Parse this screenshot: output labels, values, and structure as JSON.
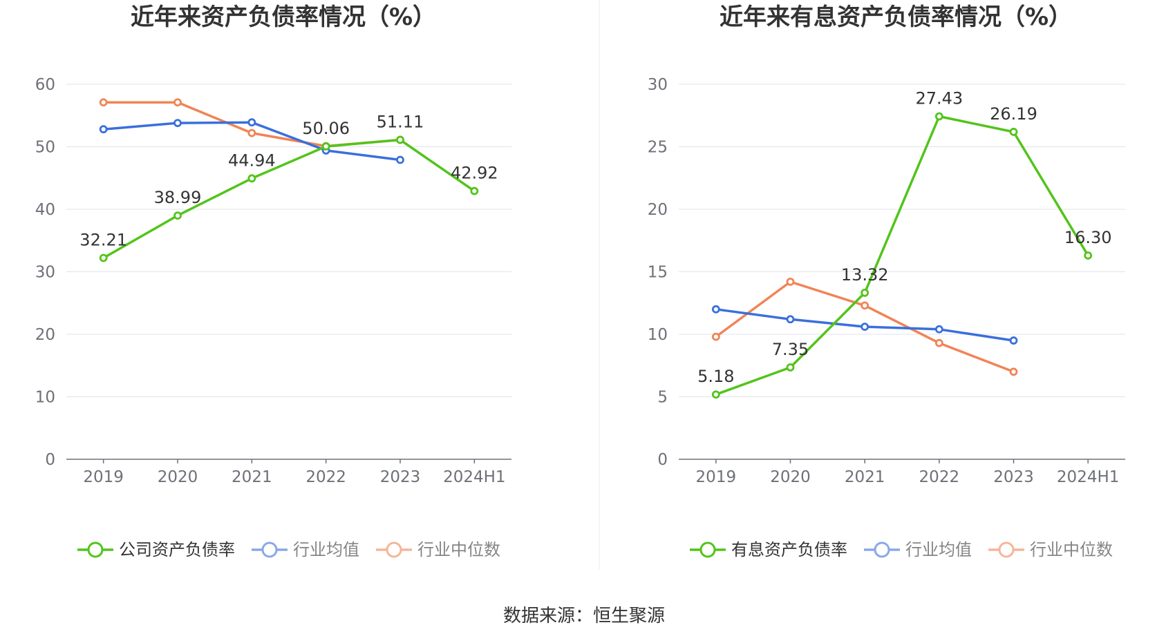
{
  "source_label": "数据来源：恒生聚源",
  "chart_data": [
    {
      "type": "line",
      "title": "近年来资产负债率情况（%）",
      "categories": [
        "2019",
        "2020",
        "2021",
        "2022",
        "2023",
        "2024H1"
      ],
      "ylim": [
        0,
        60
      ],
      "yticks": [
        0,
        10,
        20,
        30,
        40,
        50,
        60
      ],
      "grid": true,
      "legend_position": "bottom",
      "series": [
        {
          "name": "公司资产负债率",
          "color": "#52c41a",
          "labeled": true,
          "values": [
            32.21,
            38.99,
            44.94,
            50.06,
            51.11,
            42.92
          ],
          "labels": [
            "32.21",
            "38.99",
            "44.94",
            "50.06",
            "51.11",
            "42.92"
          ]
        },
        {
          "name": "行业均值",
          "color": "#3a6fdc",
          "labeled": false,
          "values": [
            52.8,
            53.8,
            53.9,
            49.4,
            47.9,
            null
          ]
        },
        {
          "name": "行业中位数",
          "color": "#f08457",
          "labeled": false,
          "values": [
            57.1,
            57.1,
            52.2,
            50.1,
            51.1,
            null
          ]
        }
      ]
    },
    {
      "type": "line",
      "title": "近年来有息资产负债率情况（%）",
      "categories": [
        "2019",
        "2020",
        "2021",
        "2022",
        "2023",
        "2024H1"
      ],
      "ylim": [
        0,
        30
      ],
      "yticks": [
        0,
        5,
        10,
        15,
        20,
        25,
        30
      ],
      "grid": true,
      "legend_position": "bottom",
      "series": [
        {
          "name": "有息资产负债率",
          "color": "#52c41a",
          "labeled": true,
          "values": [
            5.18,
            7.35,
            13.32,
            27.43,
            26.19,
            16.3
          ],
          "labels": [
            "5.18",
            "7.35",
            "13.32",
            "27.43",
            "26.19",
            "16.30"
          ]
        },
        {
          "name": "行业均值",
          "color": "#3a6fdc",
          "labeled": false,
          "values": [
            12.0,
            11.2,
            10.6,
            10.4,
            9.5,
            null
          ]
        },
        {
          "name": "行业中位数",
          "color": "#f08457",
          "labeled": false,
          "values": [
            9.8,
            14.2,
            12.3,
            9.3,
            7.0,
            null
          ]
        }
      ]
    }
  ]
}
